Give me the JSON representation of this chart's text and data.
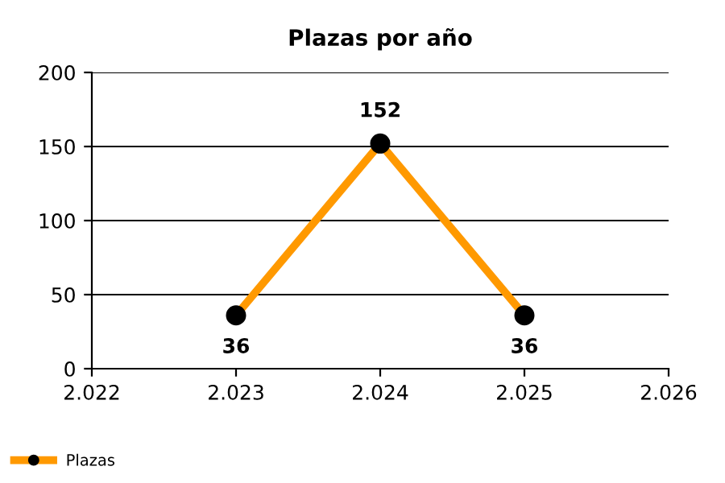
{
  "chart_data": {
    "type": "line",
    "title": "Plazas por año",
    "x": [
      2023,
      2024,
      2025
    ],
    "series": [
      {
        "name": "Plazas",
        "color": "#ff9900",
        "values": [
          36,
          152,
          36
        ]
      }
    ],
    "xlim": [
      2022,
      2026
    ],
    "xticks": [
      {
        "value": 2022,
        "label": "2.022"
      },
      {
        "value": 2023,
        "label": "2.023"
      },
      {
        "value": 2024,
        "label": "2.024"
      },
      {
        "value": 2025,
        "label": "2.025"
      },
      {
        "value": 2026,
        "label": "2.026"
      }
    ],
    "ylim": [
      0,
      200
    ],
    "yticks": [
      0,
      50,
      100,
      150,
      200
    ],
    "grid": "y",
    "legend": "bottom left",
    "marker": "circle",
    "line_style": "solid",
    "data_labels": true
  }
}
